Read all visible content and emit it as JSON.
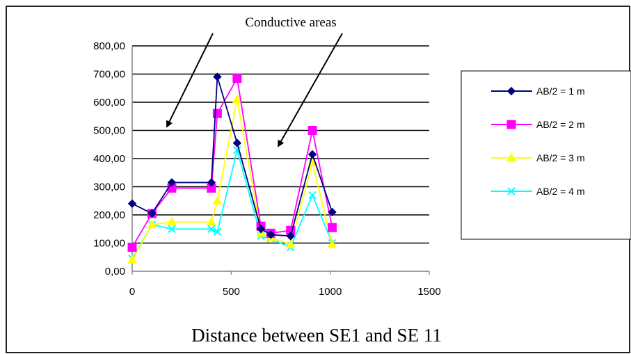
{
  "chart_data": {
    "type": "line",
    "title": "",
    "xlabel": "Distance between SE1 and SE 11",
    "ylabel": "",
    "xlim": [
      0,
      1500
    ],
    "ylim": [
      0,
      800
    ],
    "x_ticks": [
      "0",
      "500",
      "1000",
      "1500"
    ],
    "y_ticks": [
      "0,00",
      "100,00",
      "200,00",
      "300,00",
      "400,00",
      "500,00",
      "600,00",
      "700,00",
      "800,00"
    ],
    "grid": "horizontal",
    "legend_position": "right",
    "annotation": "Conductive areas",
    "series": [
      {
        "name": "AB/2 = 1 m",
        "color": "#000080",
        "marker": "diamond",
        "x": [
          0,
          100,
          200,
          400,
          430,
          530,
          650,
          700,
          800,
          910,
          1010
        ],
        "y": [
          240,
          205,
          315,
          315,
          690,
          455,
          150,
          130,
          125,
          415,
          210
        ]
      },
      {
        "name": "AB/2 = 2 m",
        "color": "#ff00ff",
        "marker": "square",
        "x": [
          0,
          100,
          200,
          400,
          430,
          530,
          650,
          700,
          800,
          910,
          1010
        ],
        "y": [
          85,
          205,
          295,
          295,
          560,
          685,
          160,
          135,
          145,
          500,
          155
        ]
      },
      {
        "name": "AB/2 = 3 m",
        "color": "#ffff00",
        "marker": "triangle",
        "x": [
          0,
          100,
          200,
          400,
          430,
          530,
          650,
          700,
          800,
          910,
          1010
        ],
        "y": [
          40,
          165,
          175,
          175,
          250,
          610,
          135,
          120,
          95,
          385,
          95
        ]
      },
      {
        "name": "AB/2 = 4 m",
        "color": "#00ffff",
        "marker": "x",
        "x": [
          0,
          100,
          200,
          400,
          430,
          530,
          650,
          700,
          800,
          910,
          1010
        ],
        "y": [
          45,
          165,
          150,
          150,
          140,
          430,
          125,
          115,
          85,
          270,
          100
        ]
      }
    ]
  }
}
